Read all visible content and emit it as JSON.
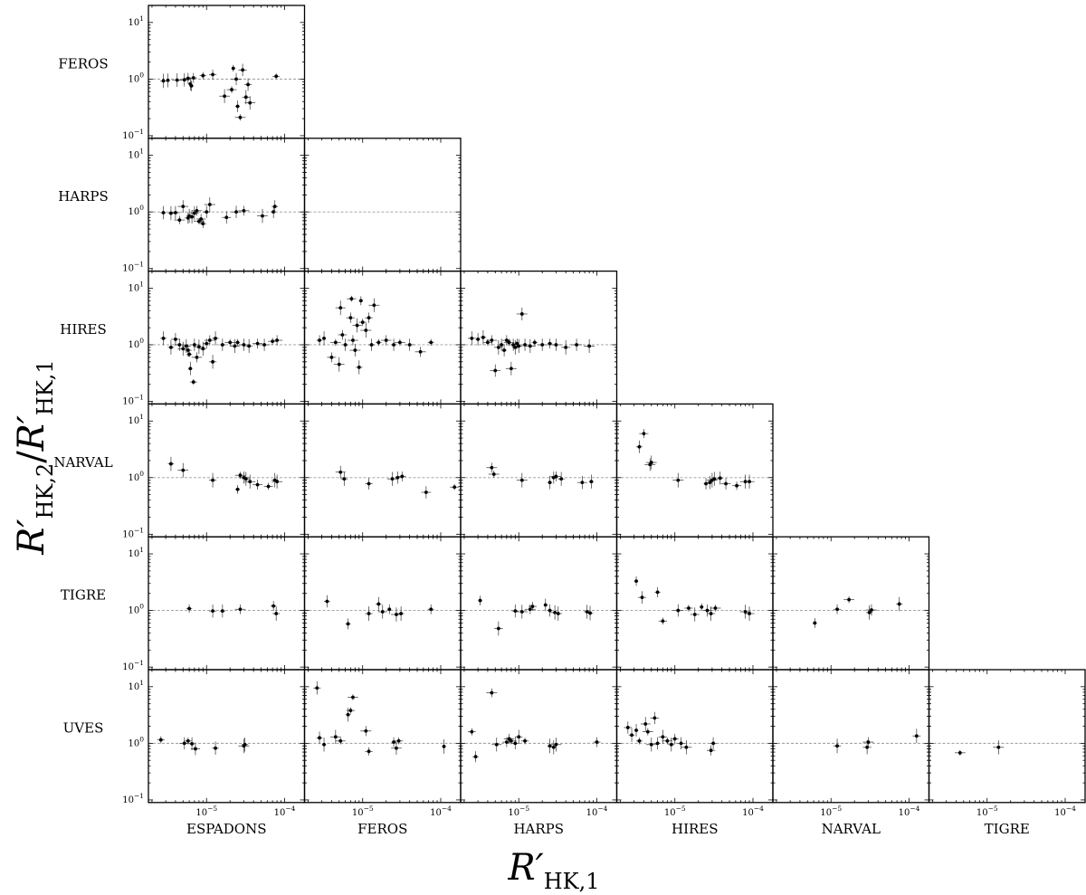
{
  "figure": {
    "xlabel_main": "R′",
    "xlabel_sub": "HK,1",
    "ylabel_main": "R′",
    "ylabel_sub2": "HK,2",
    "ylabel_slash": "/",
    "ylabel_sub1": "HK,1"
  },
  "rows": [
    "FEROS",
    "HARPS",
    "HIRES",
    "NARVAL",
    "TIGRE",
    "UVES"
  ],
  "cols": [
    "ESPADONS",
    "FEROS",
    "HARPS",
    "HIRES",
    "NARVAL",
    "TIGRE"
  ],
  "ticks": {
    "y": [
      {
        "base": "10",
        "exp": "1",
        "value": 10
      },
      {
        "base": "10",
        "exp": "0",
        "value": 1
      },
      {
        "base": "10",
        "exp": "−1",
        "value": 0.1
      }
    ],
    "x": [
      {
        "base": "10",
        "exp": "−5",
        "value": 1e-05
      },
      {
        "base": "10",
        "exp": "−4",
        "value": 0.0001
      }
    ]
  },
  "chart_data": {
    "type": "scatter",
    "title": "",
    "x_scale": "log",
    "y_scale": "log",
    "xlim": [
      1.8e-06,
      0.00018
    ],
    "ylim": [
      0.09,
      20
    ],
    "reference_line_y": 1,
    "grid": false,
    "panels": [
      {
        "row": "FEROS",
        "col": "ESPADONS",
        "points": [
          [
            2.8e-06,
            0.93
          ],
          [
            3.2e-06,
            0.95
          ],
          [
            4.2e-06,
            0.96
          ],
          [
            5.2e-06,
            0.97
          ],
          [
            5.8e-06,
            1.03
          ],
          [
            6.2e-06,
            0.82
          ],
          [
            6.4e-06,
            0.76
          ],
          [
            6.8e-06,
            1.05
          ],
          [
            9e-06,
            1.15
          ],
          [
            1.2e-05,
            1.2
          ],
          [
            1.7e-05,
            0.5
          ],
          [
            2.1e-05,
            0.65
          ],
          [
            2.2e-05,
            1.55
          ],
          [
            2.4e-05,
            1.0
          ],
          [
            2.5e-05,
            0.33
          ],
          [
            2.7e-05,
            0.21
          ],
          [
            2.9e-05,
            1.45
          ],
          [
            3.2e-05,
            0.48
          ],
          [
            3.4e-05,
            0.8
          ],
          [
            3.6e-05,
            0.38
          ],
          [
            7.8e-05,
            1.12
          ]
        ]
      },
      {
        "row": "HARPS",
        "col": "ESPADONS",
        "points": [
          [
            2.8e-06,
            0.97
          ],
          [
            3.5e-06,
            0.95
          ],
          [
            4e-06,
            0.97
          ],
          [
            4.5e-06,
            0.72
          ],
          [
            5e-06,
            1.25
          ],
          [
            5.8e-06,
            0.78
          ],
          [
            6e-06,
            0.85
          ],
          [
            6.5e-06,
            0.82
          ],
          [
            7e-06,
            0.95
          ],
          [
            7.5e-06,
            1.05
          ],
          [
            8e-06,
            0.68
          ],
          [
            8.5e-06,
            0.75
          ],
          [
            9e-06,
            0.62
          ],
          [
            1e-05,
            1.0
          ],
          [
            1.1e-05,
            1.35
          ],
          [
            1.8e-05,
            0.8
          ],
          [
            2.4e-05,
            1.0
          ],
          [
            3e-05,
            1.05
          ],
          [
            5.2e-05,
            0.85
          ],
          [
            7.2e-05,
            1.0
          ],
          [
            7.5e-05,
            1.25
          ]
        ]
      },
      {
        "row": "HIRES",
        "col": "ESPADONS",
        "points": [
          [
            2.8e-06,
            1.3
          ],
          [
            3.5e-06,
            0.9
          ],
          [
            4e-06,
            1.25
          ],
          [
            4.5e-06,
            1.0
          ],
          [
            5e-06,
            0.85
          ],
          [
            5.5e-06,
            0.95
          ],
          [
            5.8e-06,
            0.8
          ],
          [
            6e-06,
            0.68
          ],
          [
            6.2e-06,
            0.38
          ],
          [
            6.8e-06,
            0.22
          ],
          [
            7e-06,
            1.0
          ],
          [
            7.5e-06,
            0.6
          ],
          [
            8e-06,
            0.92
          ],
          [
            9e-06,
            0.85
          ],
          [
            1e-05,
            1.05
          ],
          [
            1.1e-05,
            1.2
          ],
          [
            1.2e-05,
            0.5
          ],
          [
            1.3e-05,
            1.3
          ],
          [
            1.6e-05,
            1.0
          ],
          [
            2e-05,
            1.1
          ],
          [
            2.3e-05,
            0.95
          ],
          [
            2.5e-05,
            1.1
          ],
          [
            3e-05,
            1.0
          ],
          [
            3.5e-05,
            0.95
          ],
          [
            4.5e-05,
            1.05
          ],
          [
            5.5e-05,
            1.0
          ],
          [
            7e-05,
            1.15
          ],
          [
            8e-05,
            1.2
          ]
        ]
      },
      {
        "row": "HIRES",
        "col": "FEROS",
        "points": [
          [
            2.8e-06,
            1.2
          ],
          [
            3.2e-06,
            1.3
          ],
          [
            4e-06,
            0.6
          ],
          [
            4.5e-06,
            1.1
          ],
          [
            5e-06,
            0.45
          ],
          [
            5.2e-06,
            4.5
          ],
          [
            5.5e-06,
            1.5
          ],
          [
            6e-06,
            1.0
          ],
          [
            7e-06,
            3.0
          ],
          [
            7.2e-06,
            6.5
          ],
          [
            7.5e-06,
            1.2
          ],
          [
            8e-06,
            0.8
          ],
          [
            8.5e-06,
            2.2
          ],
          [
            9e-06,
            0.4
          ],
          [
            9.5e-06,
            6.0
          ],
          [
            1e-05,
            2.5
          ],
          [
            1.1e-05,
            1.8
          ],
          [
            1.2e-05,
            3.0
          ],
          [
            1.3e-05,
            1.0
          ],
          [
            1.4e-05,
            5.0
          ],
          [
            1.6e-05,
            1.1
          ],
          [
            2e-05,
            1.2
          ],
          [
            2.5e-05,
            1.0
          ],
          [
            3e-05,
            1.1
          ],
          [
            4e-05,
            1.0
          ],
          [
            5.5e-05,
            0.75
          ],
          [
            7.5e-05,
            1.1
          ]
        ]
      },
      {
        "row": "HIRES",
        "col": "HARPS",
        "points": [
          [
            2.5e-06,
            1.3
          ],
          [
            3e-06,
            1.25
          ],
          [
            3.5e-06,
            1.35
          ],
          [
            4e-06,
            1.1
          ],
          [
            4.5e-06,
            1.2
          ],
          [
            5e-06,
            0.35
          ],
          [
            5.5e-06,
            0.9
          ],
          [
            6e-06,
            1.0
          ],
          [
            6.5e-06,
            0.8
          ],
          [
            7e-06,
            1.2
          ],
          [
            7.5e-06,
            1.1
          ],
          [
            8e-06,
            0.38
          ],
          [
            8.5e-06,
            1.0
          ],
          [
            9e-06,
            0.9
          ],
          [
            9.5e-06,
            1.05
          ],
          [
            1e-05,
            0.95
          ],
          [
            1.1e-05,
            3.5
          ],
          [
            1.2e-05,
            1.0
          ],
          [
            1.4e-05,
            0.95
          ],
          [
            1.6e-05,
            1.1
          ],
          [
            2e-05,
            1.0
          ],
          [
            2.5e-05,
            1.05
          ],
          [
            3e-05,
            1.0
          ],
          [
            4e-05,
            0.9
          ],
          [
            5.5e-05,
            1.0
          ],
          [
            8e-05,
            0.95
          ]
        ]
      },
      {
        "row": "NARVAL",
        "col": "ESPADONS",
        "points": [
          [
            3.5e-06,
            1.75
          ],
          [
            5e-06,
            1.35
          ],
          [
            1.2e-05,
            0.9
          ],
          [
            2.5e-05,
            0.62
          ],
          [
            2.7e-05,
            1.1
          ],
          [
            3e-05,
            1.0
          ],
          [
            3.2e-05,
            0.95
          ],
          [
            3.6e-05,
            0.85
          ],
          [
            4.5e-05,
            0.75
          ],
          [
            6.2e-05,
            0.7
          ],
          [
            7.5e-05,
            0.9
          ],
          [
            8e-05,
            0.85
          ]
        ]
      },
      {
        "row": "NARVAL",
        "col": "FEROS",
        "points": [
          [
            5.2e-06,
            1.25
          ],
          [
            5.8e-06,
            0.95
          ],
          [
            1.2e-05,
            0.78
          ],
          [
            2.4e-05,
            0.95
          ],
          [
            2.8e-05,
            1.0
          ],
          [
            3.2e-05,
            1.05
          ],
          [
            6.5e-05,
            0.55
          ],
          [
            0.00015,
            0.68
          ]
        ]
      },
      {
        "row": "NARVAL",
        "col": "HARPS",
        "points": [
          [
            4.5e-06,
            1.5
          ],
          [
            4.8e-06,
            1.15
          ],
          [
            1.1e-05,
            0.9
          ],
          [
            2.5e-05,
            0.82
          ],
          [
            2.8e-05,
            1.0
          ],
          [
            3e-05,
            1.05
          ],
          [
            3.5e-05,
            0.95
          ],
          [
            6.5e-05,
            0.82
          ],
          [
            8.5e-05,
            0.85
          ]
        ]
      },
      {
        "row": "NARVAL",
        "col": "HIRES",
        "points": [
          [
            3.5e-06,
            3.5
          ],
          [
            4e-06,
            6.0
          ],
          [
            4.8e-06,
            1.7
          ],
          [
            5e-06,
            1.85
          ],
          [
            1.1e-05,
            0.9
          ],
          [
            2.5e-05,
            0.78
          ],
          [
            2.8e-05,
            0.82
          ],
          [
            3e-05,
            0.9
          ],
          [
            3.2e-05,
            0.95
          ],
          [
            3.8e-05,
            0.98
          ],
          [
            4.5e-05,
            0.78
          ],
          [
            6.2e-05,
            0.72
          ],
          [
            8e-05,
            0.85
          ],
          [
            9e-05,
            0.85
          ]
        ]
      },
      {
        "row": "TIGRE",
        "col": "ESPADONS",
        "points": [
          [
            6e-06,
            1.08
          ],
          [
            1.2e-05,
            0.98
          ],
          [
            1.6e-05,
            0.98
          ],
          [
            2.7e-05,
            1.05
          ],
          [
            7.2e-05,
            1.2
          ],
          [
            7.8e-05,
            0.88
          ]
        ]
      },
      {
        "row": "TIGRE",
        "col": "FEROS",
        "points": [
          [
            3.5e-06,
            1.45
          ],
          [
            6.5e-06,
            0.58
          ],
          [
            1.2e-05,
            0.88
          ],
          [
            1.6e-05,
            1.3
          ],
          [
            1.8e-05,
            0.95
          ],
          [
            2.2e-05,
            1.05
          ],
          [
            2.7e-05,
            0.85
          ],
          [
            3.1e-05,
            0.88
          ],
          [
            7.5e-05,
            1.05
          ]
        ]
      },
      {
        "row": "TIGRE",
        "col": "HARPS",
        "points": [
          [
            3.2e-06,
            1.5
          ],
          [
            5.5e-06,
            0.48
          ],
          [
            9e-06,
            0.98
          ],
          [
            1.1e-05,
            0.95
          ],
          [
            1.4e-05,
            1.05
          ],
          [
            1.5e-05,
            1.18
          ],
          [
            2.2e-05,
            1.25
          ],
          [
            2.5e-05,
            1.0
          ],
          [
            2.9e-05,
            0.92
          ],
          [
            3.2e-05,
            0.88
          ],
          [
            7.5e-05,
            0.95
          ],
          [
            8.2e-05,
            0.9
          ]
        ]
      },
      {
        "row": "TIGRE",
        "col": "HIRES",
        "points": [
          [
            3.2e-06,
            3.3
          ],
          [
            3.8e-06,
            1.7
          ],
          [
            6e-06,
            2.1
          ],
          [
            7e-06,
            0.65
          ],
          [
            1.1e-05,
            1.0
          ],
          [
            1.5e-05,
            1.1
          ],
          [
            1.8e-05,
            0.85
          ],
          [
            2.2e-05,
            1.15
          ],
          [
            2.6e-05,
            1.0
          ],
          [
            2.9e-05,
            0.88
          ],
          [
            3.3e-05,
            1.1
          ],
          [
            8e-05,
            0.95
          ],
          [
            9e-05,
            0.88
          ]
        ]
      },
      {
        "row": "TIGRE",
        "col": "NARVAL",
        "points": [
          [
            6.2e-06,
            0.6
          ],
          [
            1.2e-05,
            1.05
          ],
          [
            1.7e-05,
            1.55
          ],
          [
            3.1e-05,
            0.92
          ],
          [
            3.3e-05,
            1.02
          ],
          [
            7.5e-05,
            1.3
          ]
        ]
      },
      {
        "row": "UVES",
        "col": "ESPADONS",
        "points": [
          [
            2.6e-06,
            1.15
          ],
          [
            5.2e-06,
            1.0
          ],
          [
            5.8e-06,
            1.1
          ],
          [
            6.5e-06,
            0.98
          ],
          [
            7.2e-06,
            0.8
          ],
          [
            1.3e-05,
            0.82
          ],
          [
            3e-05,
            0.9
          ],
          [
            3.1e-05,
            0.95
          ]
        ]
      },
      {
        "row": "UVES",
        "col": "FEROS",
        "points": [
          [
            2.6e-06,
            9.5
          ],
          [
            2.8e-06,
            1.25
          ],
          [
            3.2e-06,
            0.95
          ],
          [
            4.5e-06,
            1.3
          ],
          [
            5.2e-06,
            1.1
          ],
          [
            6.5e-06,
            3.2
          ],
          [
            7e-06,
            3.8
          ],
          [
            7.5e-06,
            6.5
          ],
          [
            1.1e-05,
            1.65
          ],
          [
            1.2e-05,
            0.72
          ],
          [
            2.5e-05,
            1.05
          ],
          [
            2.7e-05,
            0.82
          ],
          [
            2.9e-05,
            1.1
          ],
          [
            0.00011,
            0.88
          ]
        ]
      },
      {
        "row": "UVES",
        "col": "HARPS",
        "points": [
          [
            2.5e-06,
            1.6
          ],
          [
            2.8e-06,
            0.58
          ],
          [
            4.5e-06,
            7.8
          ],
          [
            5.2e-06,
            0.95
          ],
          [
            7e-06,
            1.05
          ],
          [
            7.5e-06,
            1.2
          ],
          [
            8e-06,
            1.1
          ],
          [
            9e-06,
            1.0
          ],
          [
            1e-05,
            1.3
          ],
          [
            1.2e-05,
            1.1
          ],
          [
            2.5e-05,
            0.9
          ],
          [
            2.8e-05,
            0.85
          ],
          [
            3e-05,
            0.95
          ],
          [
            0.0001,
            1.05
          ]
        ]
      },
      {
        "row": "UVES",
        "col": "HIRES",
        "points": [
          [
            2.5e-06,
            1.9
          ],
          [
            2.8e-06,
            1.4
          ],
          [
            3.2e-06,
            1.7
          ],
          [
            3.5e-06,
            1.1
          ],
          [
            4.2e-06,
            2.2
          ],
          [
            4.5e-06,
            1.6
          ],
          [
            5e-06,
            0.95
          ],
          [
            5.5e-06,
            2.8
          ],
          [
            6e-06,
            1.0
          ],
          [
            7e-06,
            1.3
          ],
          [
            8e-06,
            1.1
          ],
          [
            9e-06,
            0.95
          ],
          [
            1e-05,
            1.2
          ],
          [
            1.2e-05,
            1.0
          ],
          [
            1.4e-05,
            0.85
          ],
          [
            2.9e-05,
            0.75
          ],
          [
            3.1e-05,
            1.0
          ]
        ]
      },
      {
        "row": "UVES",
        "col": "NARVAL",
        "points": [
          [
            1.2e-05,
            0.9
          ],
          [
            2.9e-05,
            0.85
          ],
          [
            3e-05,
            1.05
          ],
          [
            0.000125,
            1.35
          ]
        ]
      },
      {
        "row": "UVES",
        "col": "TIGRE",
        "points": [
          [
            4.5e-06,
            0.68
          ],
          [
            1.4e-05,
            0.85
          ]
        ]
      }
    ]
  }
}
